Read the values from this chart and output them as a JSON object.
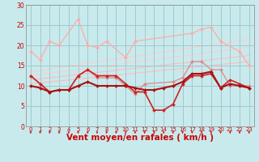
{
  "xlabel": "Vent moyen/en rafales ( km/h )",
  "xlim": [
    -0.5,
    23.5
  ],
  "ylim": [
    0,
    30
  ],
  "yticks": [
    0,
    5,
    10,
    15,
    20,
    25,
    30
  ],
  "xticks": [
    0,
    1,
    2,
    3,
    4,
    5,
    6,
    7,
    8,
    9,
    10,
    11,
    12,
    13,
    14,
    15,
    16,
    17,
    18,
    19,
    20,
    21,
    22,
    23
  ],
  "bg_color": "#c8eaed",
  "grid_color": "#a0c8cc",
  "series": [
    {
      "x": [
        0,
        1,
        2,
        3,
        5,
        6,
        7,
        8,
        10,
        11,
        17,
        18,
        19,
        20,
        22,
        23
      ],
      "y": [
        18.5,
        16.5,
        21,
        20,
        26.5,
        20,
        19.5,
        21,
        17,
        21,
        23,
        24,
        24.5,
        21,
        18.5,
        15
      ],
      "color": "#ffaaaa",
      "lw": 0.9,
      "marker": "D",
      "ms": 2.0
    },
    {
      "x": [
        0,
        1,
        2,
        3,
        4,
        5,
        6,
        7,
        8,
        9,
        10,
        11,
        12,
        15,
        16,
        17,
        18,
        19,
        20,
        21,
        22,
        23
      ],
      "y": [
        12.5,
        10.5,
        8.5,
        9,
        9,
        12.5,
        14,
        12,
        12,
        12,
        10,
        8,
        10.5,
        11,
        12,
        16,
        16,
        14,
        14,
        10,
        10,
        10
      ],
      "color": "#dd8888",
      "lw": 0.9,
      "marker": "D",
      "ms": 2.0
    },
    {
      "x": [
        0,
        1,
        2,
        3,
        4,
        5,
        6,
        7,
        8,
        9,
        10,
        11,
        12,
        13,
        14,
        15,
        16,
        17,
        18,
        19,
        20,
        21,
        22,
        23
      ],
      "y": [
        12.5,
        10.5,
        8.5,
        9,
        9,
        12.5,
        14,
        12.5,
        12.5,
        12.5,
        10.5,
        8.5,
        8.5,
        4,
        4,
        5.5,
        10.5,
        12.5,
        12.5,
        13,
        9.5,
        11.5,
        10.5,
        9.5
      ],
      "color": "#cc2222",
      "lw": 1.2,
      "marker": "D",
      "ms": 2.0
    },
    {
      "x": [
        0,
        1,
        2,
        3,
        4,
        5,
        6,
        7,
        8,
        9,
        10,
        11,
        12,
        13,
        14,
        15,
        16,
        17,
        18,
        19,
        20,
        21,
        22,
        23
      ],
      "y": [
        10,
        9.5,
        8.5,
        9,
        9,
        10,
        11,
        10,
        10,
        10,
        10,
        9.5,
        9,
        9,
        9.5,
        10,
        11,
        13,
        13,
        13.5,
        9.5,
        10.5,
        10,
        9.5
      ],
      "color": "#aa1111",
      "lw": 1.5,
      "marker": "D",
      "ms": 2.0
    }
  ],
  "trend_lines": [
    {
      "x0": 0,
      "y0": 10.5,
      "x1": 23,
      "y1": 16.0,
      "color": "#ffbbbb",
      "lw": 0.8
    },
    {
      "x0": 0,
      "y0": 11.5,
      "x1": 23,
      "y1": 17.5,
      "color": "#ffbbbb",
      "lw": 0.8
    },
    {
      "x0": 0,
      "y0": 12.5,
      "x1": 23,
      "y1": 19.5,
      "color": "#ffcccc",
      "lw": 0.8
    },
    {
      "x0": 0,
      "y0": 13.5,
      "x1": 23,
      "y1": 21.5,
      "color": "#ffcccc",
      "lw": 0.8
    }
  ],
  "arrow_color": "#cc0000",
  "tick_label_color": "#cc0000",
  "xlabel_color": "#cc0000",
  "xlabel_fontsize": 7.5
}
